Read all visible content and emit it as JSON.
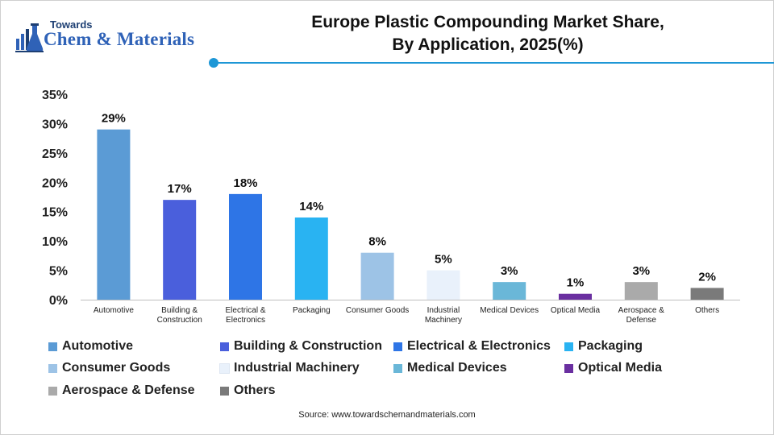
{
  "brand": {
    "line1": "Towards",
    "line2": "Chem & Materials"
  },
  "title_lines": [
    "Europe Plastic Compounding Market Share,",
    "By Application, 2025(%)"
  ],
  "source": "Source: www.towardschemandmaterials.com",
  "colors": {
    "accent": "#1e97d6",
    "brand_blue": "#2f62b7"
  },
  "chart_data": {
    "type": "bar",
    "title": "Europe Plastic Compounding Market Share, By Application, 2025(%)",
    "xlabel": "",
    "ylabel": "",
    "ylim": [
      0,
      35
    ],
    "yticks": [
      0,
      5,
      10,
      15,
      20,
      25,
      30,
      35
    ],
    "ytick_labels": [
      "0%",
      "5%",
      "10%",
      "15%",
      "20%",
      "25%",
      "30%",
      "35%"
    ],
    "grid": false,
    "legend_position": "bottom",
    "categories": [
      [
        "Automotive"
      ],
      [
        "Building &",
        "Construction"
      ],
      [
        "Electrical &",
        "Electronics"
      ],
      [
        "Packaging"
      ],
      [
        "Consumer Goods"
      ],
      [
        "Industrial",
        "Machinery"
      ],
      [
        "Medical Devices"
      ],
      [
        "Optical Media"
      ],
      [
        "Aerospace &",
        "Defense"
      ],
      [
        "Others"
      ]
    ],
    "values": [
      29,
      17,
      18,
      14,
      8,
      5,
      3,
      1,
      3,
      2
    ],
    "value_labels": [
      "29%",
      "17%",
      "18%",
      "14%",
      "8%",
      "5%",
      "3%",
      "1%",
      "3%",
      "2%"
    ],
    "colors": [
      "#5b9bd5",
      "#4a5fdc",
      "#2e75e6",
      "#29b3f2",
      "#9dc3e6",
      "#e9f1fb",
      "#6ab7d8",
      "#6a2fa0",
      "#aaaaaa",
      "#7a7a7a"
    ],
    "legend": [
      "Automotive",
      "Building & Construction",
      "Electrical & Electronics",
      "Packaging",
      "Consumer Goods",
      "Industrial Machinery",
      "Medical Devices",
      "Optical Media",
      "Aerospace & Defense",
      "Others"
    ]
  }
}
